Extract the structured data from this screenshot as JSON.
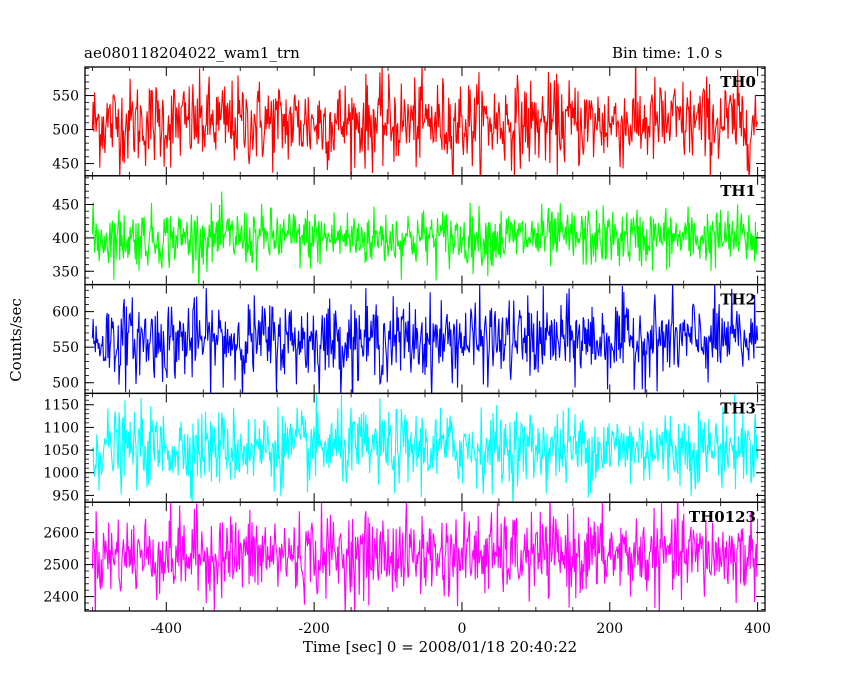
{
  "header": {
    "title_left": "ae080118204022_wam1_trn",
    "title_right": "Bin time: 1.0 s"
  },
  "chart_data": {
    "type": "line",
    "xlabel": "Time [sec] 0 = 2008/01/18 20:40:22",
    "ylabel": "Counts/sec",
    "xlim": [
      -510,
      410
    ],
    "x_ticks": [
      -400,
      -200,
      0,
      200,
      400
    ],
    "x_range": [
      -500,
      400
    ],
    "panels": [
      {
        "name": "TH0",
        "color": "#ff0000",
        "ylim": [
          432,
          592
        ],
        "y_ticks": [
          450,
          500,
          550
        ],
        "mean": 510,
        "noise": 32
      },
      {
        "name": "TH1",
        "color": "#00ff00",
        "ylim": [
          330,
          493
        ],
        "y_ticks": [
          350,
          400,
          450
        ],
        "mean": 400,
        "noise": 22
      },
      {
        "name": "TH2",
        "color": "#0000ff",
        "ylim": [
          485,
          638
        ],
        "y_ticks": [
          500,
          550,
          600
        ],
        "mean": 560,
        "noise": 28
      },
      {
        "name": "TH3",
        "color": "#00ffff",
        "ylim": [
          935,
          1175
        ],
        "y_ticks": [
          950,
          1000,
          1050,
          1100,
          1150
        ],
        "mean": 1055,
        "noise": 42
      },
      {
        "name": "TH0123",
        "color": "#ff00ff",
        "ylim": [
          2355,
          2695
        ],
        "y_ticks": [
          2400,
          2500,
          2600
        ],
        "mean": 2530,
        "noise": 65
      }
    ]
  }
}
